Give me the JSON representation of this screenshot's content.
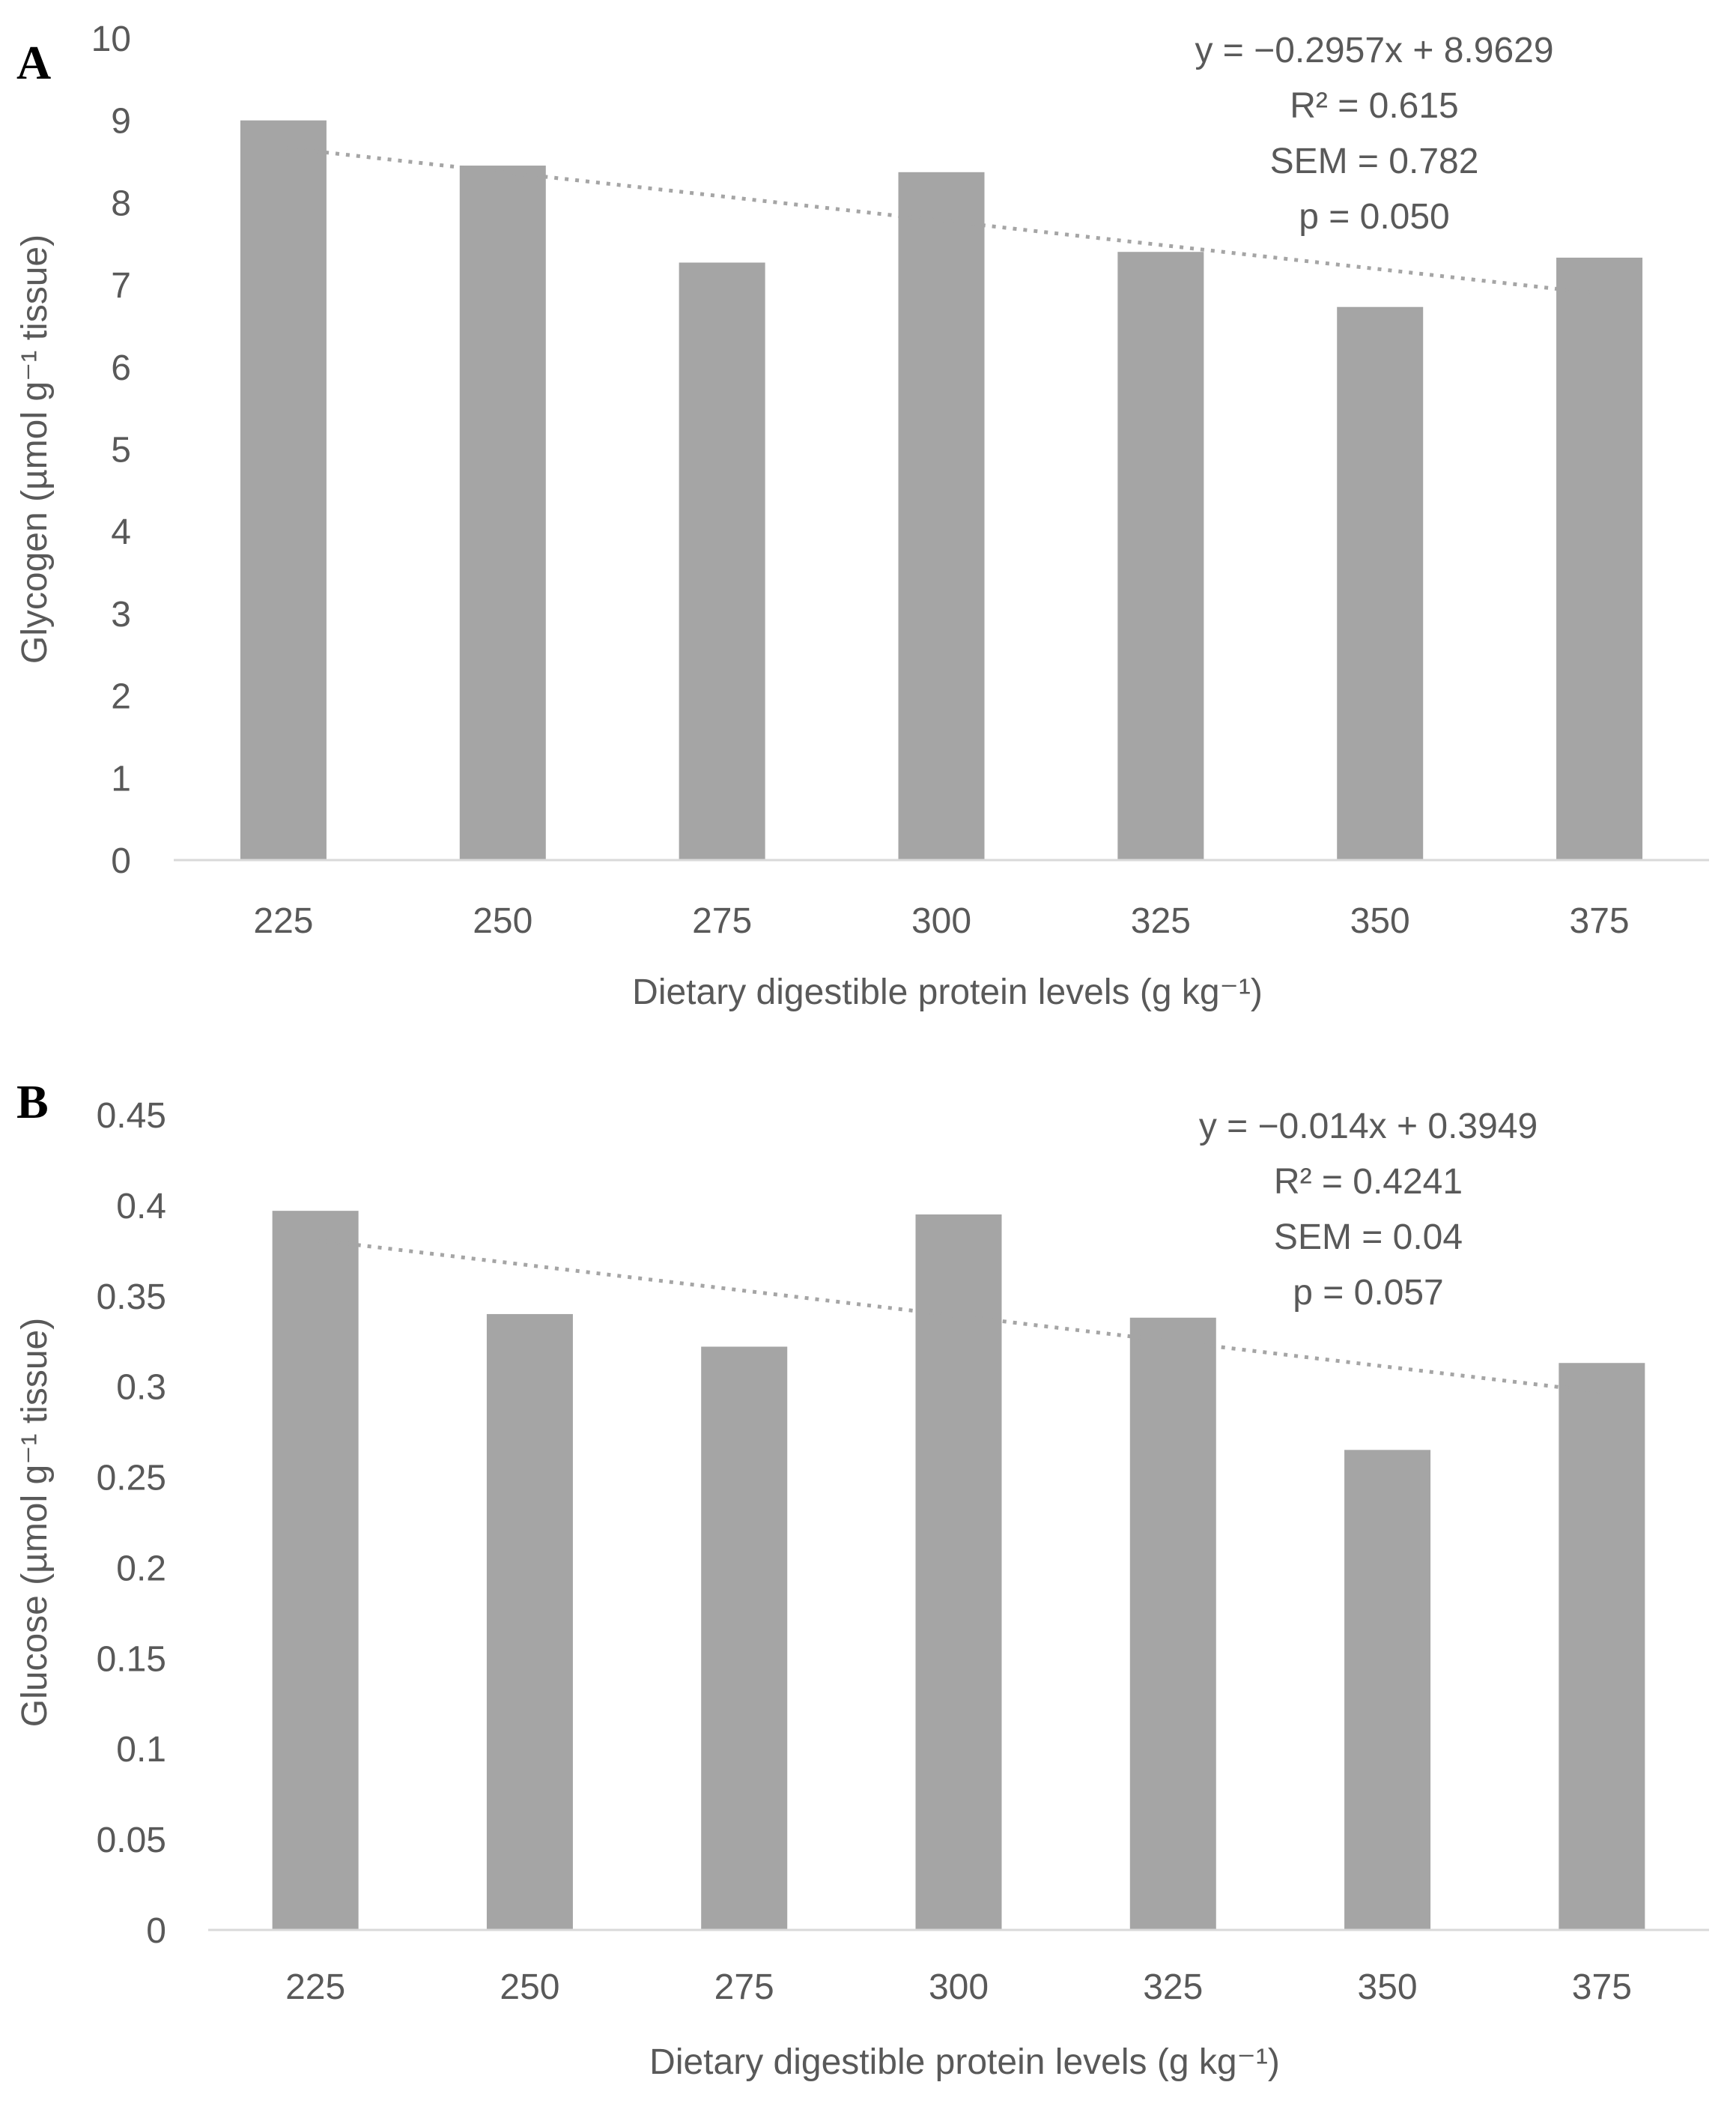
{
  "chart_data": [
    {
      "type": "bar",
      "panel": "A",
      "categories": [
        "225",
        "250",
        "275",
        "300",
        "325",
        "350",
        "375"
      ],
      "values": [
        9.0,
        8.45,
        7.27,
        8.37,
        7.4,
        6.73,
        7.33
      ],
      "ylim": [
        0,
        10
      ],
      "yticks": [
        "0",
        "1",
        "2",
        "3",
        "4",
        "5",
        "6",
        "7",
        "8",
        "9",
        "10"
      ],
      "ylabel": "Glycogen (µmol g⁻¹ tissue)",
      "xlabel": "Dietary digestible protein levels (g kg⁻¹)",
      "trendline": {
        "slope": -0.2957,
        "intercept": 8.9629
      },
      "annotations": [
        "y = −0.2957x + 8.9629",
        "R² = 0.615",
        "SEM = 0.782",
        "p = 0.050"
      ]
    },
    {
      "type": "bar",
      "panel": "B",
      "categories": [
        "225",
        "250",
        "275",
        "300",
        "325",
        "350",
        "375"
      ],
      "values": [
        0.397,
        0.34,
        0.322,
        0.395,
        0.338,
        0.265,
        0.313
      ],
      "ylim": [
        0,
        0.45
      ],
      "yticks": [
        "0",
        "0.05",
        "0.1",
        "0.15",
        "0.2",
        "0.25",
        "0.3",
        "0.35",
        "0.4",
        "0.45"
      ],
      "ylabel": "Glucose (µmol g⁻¹ tissue)",
      "xlabel": "Dietary digestible protein levels (g kg⁻¹)",
      "trendline": {
        "slope": -0.014,
        "intercept": 0.3949
      },
      "annotations": [
        "y = −0.014x + 0.3949",
        "R² = 0.4241",
        "SEM = 0.04",
        "p = 0.057"
      ]
    }
  ]
}
